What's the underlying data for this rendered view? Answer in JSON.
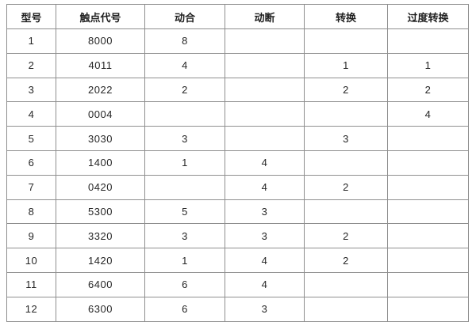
{
  "table": {
    "headers": [
      "型号",
      "触点代号",
      "动合",
      "动断",
      "转换",
      "过度转换"
    ],
    "rows": [
      [
        "1",
        "8000",
        "8",
        "",
        "",
        ""
      ],
      [
        "2",
        "4011",
        "4",
        "",
        "1",
        "1"
      ],
      [
        "3",
        "2022",
        "2",
        "",
        "2",
        "2"
      ],
      [
        "4",
        "0004",
        "",
        "",
        "",
        "4"
      ],
      [
        "5",
        "3030",
        "3",
        "",
        "3",
        ""
      ],
      [
        "6",
        "1400",
        "1",
        "4",
        "",
        ""
      ],
      [
        "7",
        "0420",
        "",
        "4",
        "2",
        ""
      ],
      [
        "8",
        "5300",
        "5",
        "3",
        "",
        ""
      ],
      [
        "9",
        "3320",
        "3",
        "3",
        "2",
        ""
      ],
      [
        "10",
        "1420",
        "1",
        "4",
        "2",
        ""
      ],
      [
        "11",
        "6400",
        "6",
        "4",
        "",
        ""
      ],
      [
        "12",
        "6300",
        "6",
        "3",
        "",
        ""
      ]
    ],
    "colors": {
      "grid_line": "#8f8f8f",
      "outer_border": "#7d7d7d",
      "text": "#262626",
      "background": "#ffffff"
    }
  }
}
